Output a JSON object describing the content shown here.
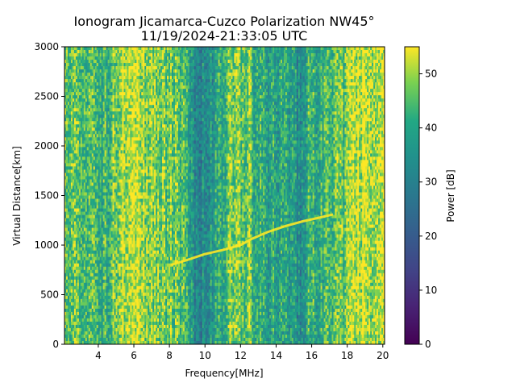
{
  "chart_data": {
    "type": "heatmap",
    "title_line1": "Ionogram Jicamarca-Cuzco Polarization NW45°",
    "title_line2": "11/19/2024-21:33:05 UTC",
    "xlabel": "Frequency[MHz]",
    "ylabel": "Virtual Distance[km]",
    "colorbar_label": "Power [dB]",
    "xlim": [
      2.1,
      20.1
    ],
    "ylim": [
      0,
      3000
    ],
    "colorbar_range": [
      0,
      55
    ],
    "colormap": "viridis",
    "x_ticks": [
      4,
      6,
      8,
      10,
      12,
      14,
      16,
      18,
      20
    ],
    "x_tick_labels": [
      "4",
      "6",
      "8",
      "10",
      "12",
      "14",
      "16",
      "18",
      "20"
    ],
    "y_ticks": [
      0,
      500,
      1000,
      1500,
      2000,
      2500,
      3000
    ],
    "y_tick_labels": [
      "0",
      "500",
      "1000",
      "1500",
      "2000",
      "2500",
      "3000"
    ],
    "colorbar_ticks": [
      0,
      10,
      20,
      30,
      40,
      50
    ],
    "colorbar_tick_labels": [
      "0",
      "10",
      "20",
      "30",
      "40",
      "50"
    ],
    "trace": {
      "name": "echo-trace",
      "x": [
        8.1,
        9.0,
        10.0,
        11.0,
        12.0,
        12.6,
        13.5,
        14.5,
        15.5,
        16.5,
        17.2
      ],
      "y": [
        800,
        850,
        910,
        950,
        1000,
        1060,
        1130,
        1190,
        1240,
        1280,
        1310
      ]
    },
    "column_power_profile": [
      {
        "f": 2.1,
        "db": 44
      },
      {
        "f": 2.6,
        "db": 48
      },
      {
        "f": 3.2,
        "db": 43
      },
      {
        "f": 3.8,
        "db": 46
      },
      {
        "f": 4.3,
        "db": 40
      },
      {
        "f": 4.8,
        "db": 45
      },
      {
        "f": 5.3,
        "db": 52
      },
      {
        "f": 6.0,
        "db": 50
      },
      {
        "f": 6.8,
        "db": 48
      },
      {
        "f": 7.5,
        "db": 49
      },
      {
        "f": 8.2,
        "db": 46
      },
      {
        "f": 8.8,
        "db": 42
      },
      {
        "f": 9.3,
        "db": 33
      },
      {
        "f": 9.9,
        "db": 32
      },
      {
        "f": 10.6,
        "db": 38
      },
      {
        "f": 11.2,
        "db": 45
      },
      {
        "f": 11.8,
        "db": 48
      },
      {
        "f": 12.4,
        "db": 47
      },
      {
        "f": 12.9,
        "db": 42
      },
      {
        "f": 13.5,
        "db": 38
      },
      {
        "f": 14.2,
        "db": 40
      },
      {
        "f": 14.9,
        "db": 37
      },
      {
        "f": 15.4,
        "db": 32
      },
      {
        "f": 16.0,
        "db": 44
      },
      {
        "f": 16.6,
        "db": 41
      },
      {
        "f": 17.2,
        "db": 45
      },
      {
        "f": 17.8,
        "db": 43
      },
      {
        "f": 18.3,
        "db": 52
      },
      {
        "f": 19.0,
        "db": 54
      },
      {
        "f": 19.6,
        "db": 51
      },
      {
        "f": 20.1,
        "db": 50
      }
    ]
  }
}
